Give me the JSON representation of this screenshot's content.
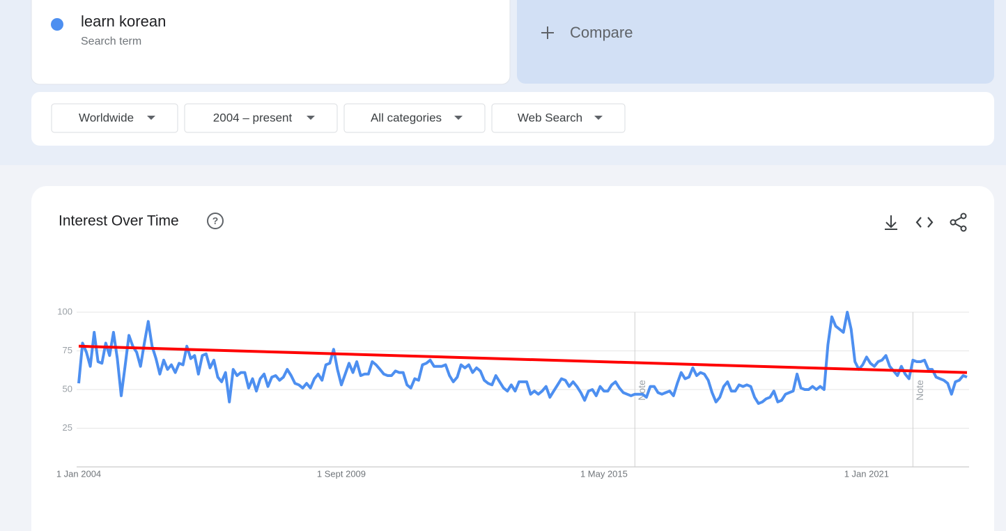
{
  "search": {
    "term": "learn korean",
    "term_type": "Search term",
    "compare": "Compare"
  },
  "filters": [
    "Worldwide",
    "2004 – present",
    "All categories",
    "Web Search"
  ],
  "chart_data": {
    "type": "line",
    "title": "Interest Over Time",
    "x": [
      "2004-01",
      "2004-02",
      "2004-03",
      "2004-04",
      "2004-05",
      "2004-06",
      "2004-07",
      "2004-08",
      "2004-09",
      "2004-10",
      "2004-11",
      "2004-12",
      "2005-01",
      "2005-02",
      "2005-03",
      "2005-04",
      "2005-05",
      "2005-06",
      "2005-07",
      "2005-08",
      "2005-09",
      "2005-10",
      "2005-11",
      "2005-12",
      "2006-01",
      "2006-02",
      "2006-03",
      "2006-04",
      "2006-05",
      "2006-06",
      "2006-07",
      "2006-08",
      "2006-09",
      "2006-10",
      "2006-11",
      "2006-12",
      "2007-01",
      "2007-02",
      "2007-03",
      "2007-04",
      "2007-05",
      "2007-06",
      "2007-07",
      "2007-08",
      "2007-09",
      "2007-10",
      "2007-11",
      "2007-12",
      "2008-01",
      "2008-02",
      "2008-03",
      "2008-04",
      "2008-05",
      "2008-06",
      "2008-07",
      "2008-08",
      "2008-09",
      "2008-10",
      "2008-11",
      "2008-12",
      "2009-01",
      "2009-02",
      "2009-03",
      "2009-04",
      "2009-05",
      "2009-06",
      "2009-07",
      "2009-08",
      "2009-09",
      "2009-10",
      "2009-11",
      "2009-12",
      "2010-01",
      "2010-02",
      "2010-03",
      "2010-04",
      "2010-05",
      "2010-06",
      "2010-07",
      "2010-08",
      "2010-09",
      "2010-10",
      "2010-11",
      "2010-12",
      "2011-01",
      "2011-02",
      "2011-03",
      "2011-04",
      "2011-05",
      "2011-06",
      "2011-07",
      "2011-08",
      "2011-09",
      "2011-10",
      "2011-11",
      "2011-12",
      "2012-01",
      "2012-02",
      "2012-03",
      "2012-04",
      "2012-05",
      "2012-06",
      "2012-07",
      "2012-08",
      "2012-09",
      "2012-10",
      "2012-11",
      "2012-12",
      "2013-01",
      "2013-02",
      "2013-03",
      "2013-04",
      "2013-05",
      "2013-06",
      "2013-07",
      "2013-08",
      "2013-09",
      "2013-10",
      "2013-11",
      "2013-12",
      "2014-01",
      "2014-02",
      "2014-03",
      "2014-04",
      "2014-05",
      "2014-06",
      "2014-07",
      "2014-08",
      "2014-09",
      "2014-10",
      "2014-11",
      "2014-12",
      "2015-01",
      "2015-02",
      "2015-03",
      "2015-04",
      "2015-05",
      "2015-06",
      "2015-07",
      "2015-08",
      "2015-09",
      "2015-10",
      "2015-11",
      "2015-12",
      "2016-01",
      "2016-02",
      "2016-03",
      "2016-04",
      "2016-05",
      "2016-06",
      "2016-07",
      "2016-08",
      "2016-09",
      "2016-10",
      "2016-11",
      "2016-12",
      "2017-01",
      "2017-02",
      "2017-03",
      "2017-04",
      "2017-05",
      "2017-06",
      "2017-07",
      "2017-08",
      "2017-09",
      "2017-10",
      "2017-11",
      "2017-12",
      "2018-01",
      "2018-02",
      "2018-03",
      "2018-04",
      "2018-05",
      "2018-06",
      "2018-07",
      "2018-08",
      "2018-09",
      "2018-10",
      "2018-11",
      "2018-12",
      "2019-01",
      "2019-02",
      "2019-03",
      "2019-04",
      "2019-05",
      "2019-06",
      "2019-07",
      "2019-08",
      "2019-09",
      "2019-10",
      "2019-11",
      "2019-12",
      "2020-01",
      "2020-02",
      "2020-03",
      "2020-04",
      "2020-05",
      "2020-06",
      "2020-07",
      "2020-08",
      "2020-09",
      "2020-10",
      "2020-11",
      "2020-12",
      "2021-01",
      "2021-02",
      "2021-03",
      "2021-04",
      "2021-05",
      "2021-06",
      "2021-07",
      "2021-08",
      "2021-09",
      "2021-10",
      "2021-11",
      "2021-12",
      "2022-01",
      "2022-02",
      "2022-03",
      "2022-04",
      "2022-05",
      "2022-06",
      "2022-07",
      "2022-08",
      "2022-09",
      "2022-10",
      "2022-11",
      "2022-12",
      "2023-01",
      "2023-02",
      "2023-03"
    ],
    "series": [
      {
        "color": "#4d8ff0",
        "values": [
          54,
          80,
          74,
          65,
          87,
          68,
          67,
          80,
          72,
          87,
          70,
          46,
          65,
          85,
          78,
          74,
          65,
          80,
          94,
          78,
          70,
          60,
          69,
          63,
          66,
          61,
          67,
          66,
          78,
          70,
          72,
          60,
          72,
          73,
          64,
          69,
          58,
          55,
          61,
          42,
          63,
          59,
          61,
          61,
          51,
          57,
          49,
          57,
          60,
          52,
          58,
          59,
          56,
          58,
          63,
          59,
          54,
          53,
          51,
          54,
          51,
          57,
          60,
          56,
          66,
          67,
          76,
          63,
          53,
          60,
          67,
          61,
          68,
          59,
          60,
          60,
          68,
          66,
          63,
          60,
          59,
          59,
          62,
          61,
          61,
          53,
          51,
          57,
          56,
          66,
          67,
          69,
          65,
          65,
          65,
          66,
          59,
          55,
          58,
          66,
          64,
          66,
          61,
          64,
          62,
          56,
          54,
          53,
          59,
          55,
          51,
          49,
          53,
          49,
          55,
          55,
          55,
          47,
          49,
          47,
          49,
          52,
          45,
          49,
          53,
          57,
          56,
          52,
          55,
          52,
          48,
          43,
          49,
          50,
          46,
          52,
          49,
          49,
          53,
          55,
          51,
          48,
          47,
          46,
          47,
          47,
          47,
          45,
          52,
          52,
          48,
          47,
          48,
          49,
          46,
          54,
          61,
          57,
          58,
          64,
          59,
          61,
          60,
          56,
          48,
          42,
          45,
          52,
          55,
          49,
          49,
          53,
          52,
          53,
          52,
          45,
          41,
          42,
          44,
          45,
          49,
          42,
          43,
          47,
          48,
          49,
          60,
          51,
          50,
          50,
          52,
          50,
          52,
          50,
          79,
          97,
          91,
          89,
          87,
          100,
          89,
          68,
          63,
          66,
          71,
          67,
          65,
          68,
          69,
          72,
          65,
          62,
          59,
          65,
          60,
          57,
          69,
          68,
          68,
          69,
          63,
          63,
          58,
          57,
          56,
          54,
          47,
          55,
          56,
          59,
          58
        ]
      }
    ],
    "trend_line": {
      "x": [
        "2004-01",
        "2023-03"
      ],
      "values": [
        78,
        61
      ],
      "color": "#ff0000"
    },
    "annotations": [
      {
        "x": "2016-01",
        "label": "Note"
      },
      {
        "x": "2022-01",
        "label": "Note"
      }
    ],
    "xlim": [
      "2004-01",
      "2023-03"
    ],
    "xticks": [
      {
        "value": "2004-01",
        "label": "1 Jan 2004"
      },
      {
        "value": "2009-09",
        "label": "1 Sept 2009"
      },
      {
        "value": "2015-05",
        "label": "1 May 2015"
      },
      {
        "value": "2021-01",
        "label": "1 Jan 2021"
      }
    ],
    "ylim": [
      0,
      100
    ],
    "yticks": [
      25,
      50,
      75,
      100
    ],
    "grid": true
  }
}
